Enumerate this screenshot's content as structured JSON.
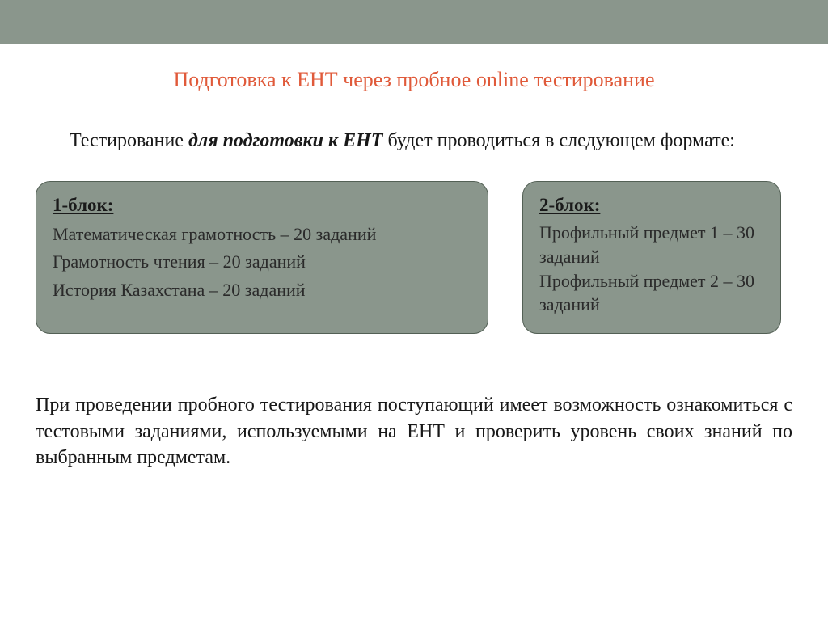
{
  "layout": {
    "page_bg": "#ffffff",
    "topbar_bg": "#8a968c",
    "title_color": "#e05a3a",
    "block_bg": "#8a968c",
    "block_border": "#536055",
    "text_color": "#181818"
  },
  "title": "Подготовка к ЕНТ через пробное online тестирование",
  "intro": {
    "prefix": "Тестирование",
    "italic_part": " для подготовки к ЕНТ",
    "rest": " будет проводиться в следующем формате:"
  },
  "block1": {
    "title": "1-блок:",
    "lines": [
      "Математическая грамотность – 20 заданий",
      "Грамотность чтения – 20 заданий",
      "История Казахстана – 20 заданий"
    ]
  },
  "block2": {
    "title": "2-блок:",
    "lines": [
      "Профильный предмет 1 – 30  заданий",
      "Профильный предмет 2 – 30  заданий"
    ]
  },
  "footer": "При проведении пробного тестирования поступающий имеет возможность ознакомиться с тестовыми заданиями, используемыми на ЕНТ и проверить уровень своих знаний по выбранным предметам."
}
